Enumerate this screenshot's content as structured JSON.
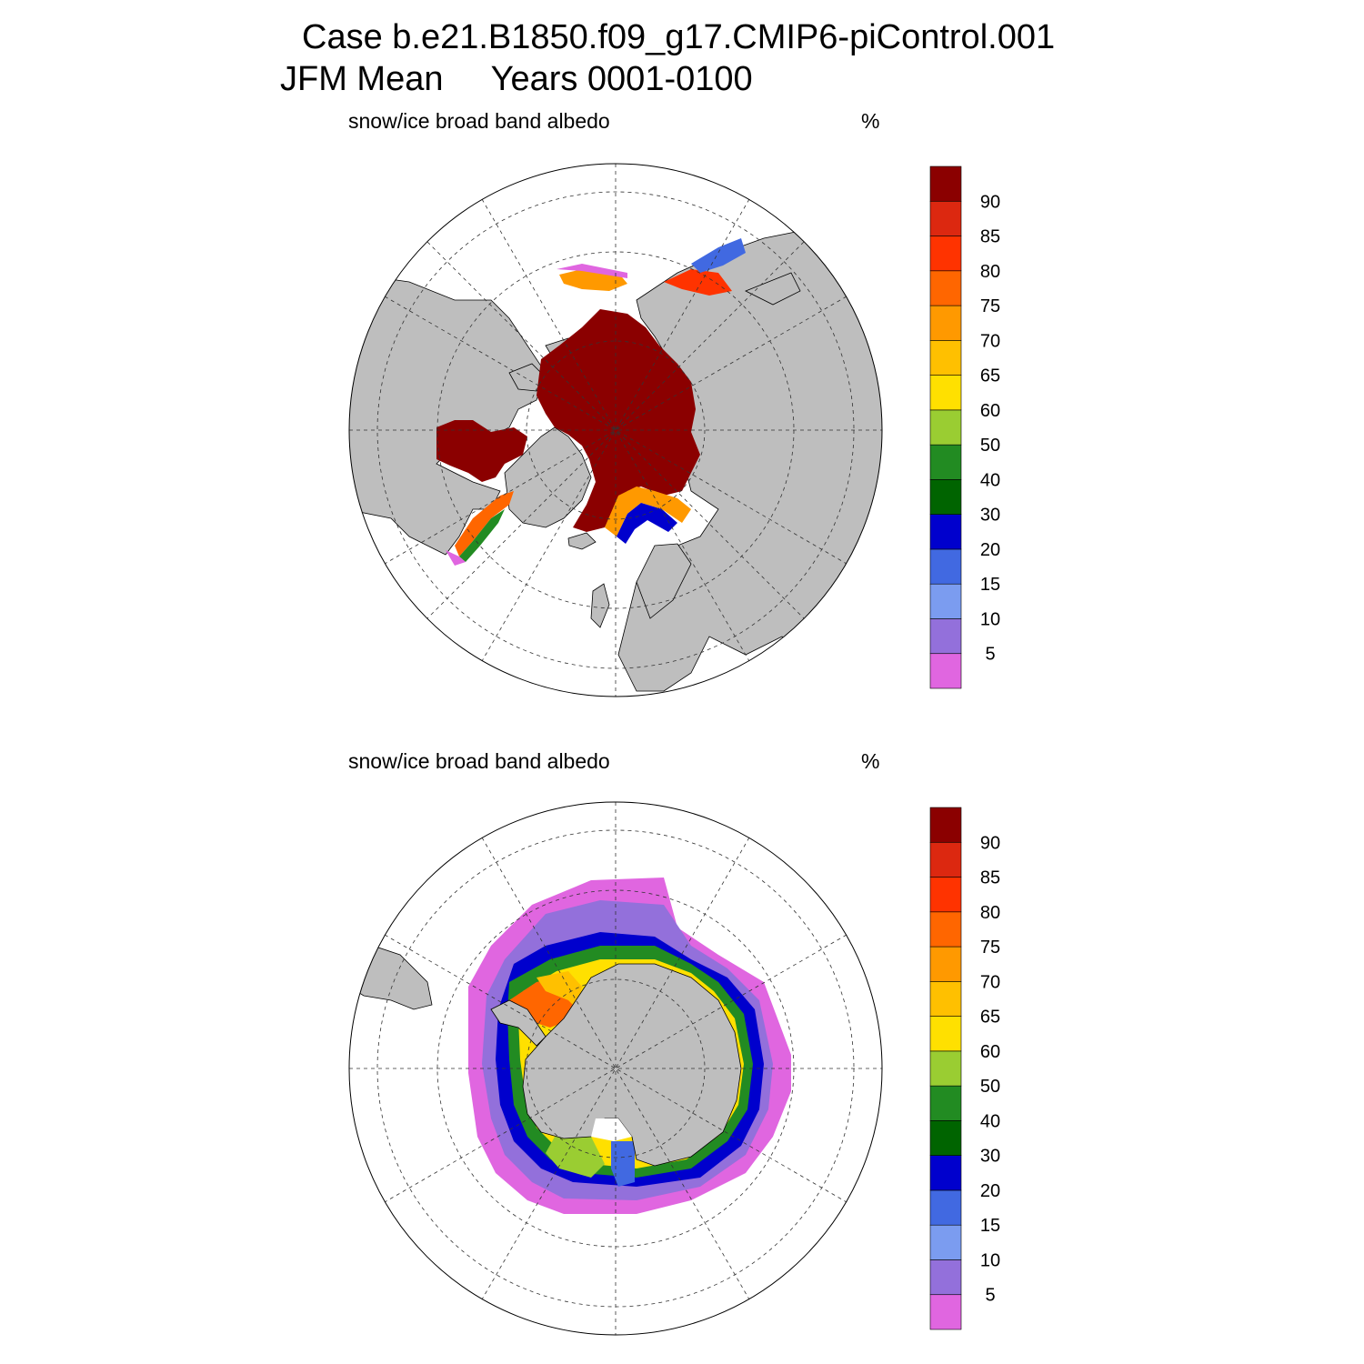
{
  "title": {
    "line1": "Case b.e21.B1850.f09_g17.CMIP6-piControl.001",
    "line2": "JFM Mean     Years 0001-0100"
  },
  "colors": {
    "land": "#bebebe",
    "ocean": "#ffffff"
  },
  "colorbar": {
    "tick_labels": [
      "5",
      "10",
      "15",
      "20",
      "30",
      "40",
      "50",
      "60",
      "65",
      "70",
      "75",
      "80",
      "85",
      "90"
    ],
    "colors_bottom_to_top": [
      "#e066e0",
      "#9370db",
      "#7b9cf0",
      "#4169e1",
      "#0000cd",
      "#006400",
      "#228b22",
      "#9acd32",
      "#ffe000",
      "#ffc000",
      "#ff9900",
      "#ff6600",
      "#ff3300",
      "#dc2810",
      "#8b0000"
    ]
  },
  "panels": [
    {
      "hemisphere": "north",
      "label": "snow/ice broad band albedo",
      "units": "%"
    },
    {
      "hemisphere": "south",
      "label": "snow/ice broad band albedo",
      "units": "%"
    }
  ]
}
